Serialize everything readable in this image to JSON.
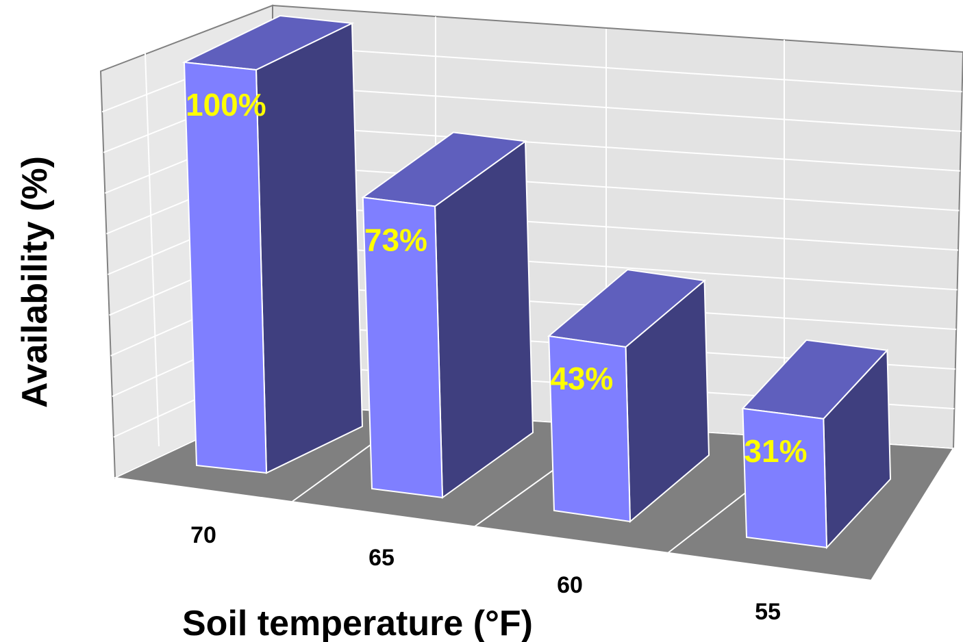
{
  "chart_data": {
    "type": "bar",
    "style": "3d-column",
    "categories": [
      "70",
      "65",
      "60",
      "55"
    ],
    "values": [
      100,
      73,
      43,
      31
    ],
    "data_labels": [
      "100%",
      "73%",
      "43%",
      "31%"
    ],
    "xlabel": "Soil temperature (°F)",
    "ylabel": "Availability (%)",
    "ylim": [
      0,
      100
    ],
    "grid": true,
    "legend": "none"
  },
  "colors": {
    "bar_front": "#7f7fff",
    "bar_top": "#5f5fbd",
    "bar_side": "#3f3f7f",
    "data_label": "#ffff00",
    "floor": "#808080",
    "walls": "#e3e3e3",
    "axis_text": "#000000"
  }
}
